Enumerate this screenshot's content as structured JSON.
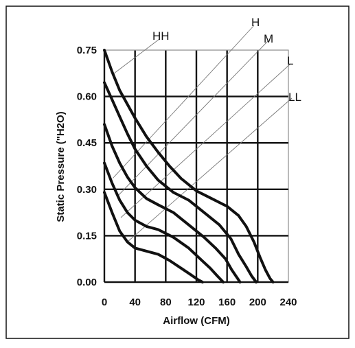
{
  "chart_data": {
    "type": "line",
    "title": "",
    "xlabel": "Airflow (CFM)",
    "ylabel": "Static Pressure (\"H2O)",
    "xlim": [
      0,
      240
    ],
    "ylim": [
      0,
      0.75
    ],
    "xticks": [
      0,
      40,
      80,
      120,
      160,
      200,
      240
    ],
    "xtick_labels": [
      "0",
      "40",
      "80",
      "120",
      "160",
      "200",
      "240"
    ],
    "yticks": [
      0,
      0.15,
      0.3,
      0.45,
      0.6,
      0.75
    ],
    "ytick_labels": [
      "0.00",
      "0.15",
      "0.30",
      "0.45",
      "0.60",
      "0.75"
    ],
    "grid": true,
    "legend": "none",
    "line_color": "#111111",
    "series": [
      {
        "name": "HH",
        "x": [
          0,
          10,
          20,
          30,
          40,
          55,
          70,
          85,
          100,
          120,
          140,
          160,
          175,
          185,
          195,
          203,
          210,
          216,
          220
        ],
        "y": [
          0.75,
          0.68,
          0.62,
          0.575,
          0.53,
          0.47,
          0.42,
          0.375,
          0.335,
          0.295,
          0.27,
          0.245,
          0.215,
          0.18,
          0.13,
          0.08,
          0.04,
          0.012,
          0.0
        ]
      },
      {
        "name": "H",
        "x": [
          0,
          10,
          20,
          30,
          40,
          55,
          70,
          90,
          110,
          130,
          150,
          165,
          175,
          185,
          192,
          198
        ],
        "y": [
          0.645,
          0.59,
          0.535,
          0.48,
          0.43,
          0.375,
          0.33,
          0.29,
          0.265,
          0.225,
          0.185,
          0.14,
          0.09,
          0.05,
          0.02,
          0.0
        ]
      },
      {
        "name": "M",
        "x": [
          0,
          10,
          20,
          30,
          40,
          55,
          70,
          90,
          110,
          130,
          145,
          158,
          166,
          172,
          177
        ],
        "y": [
          0.51,
          0.44,
          0.385,
          0.34,
          0.305,
          0.27,
          0.25,
          0.225,
          0.185,
          0.145,
          0.11,
          0.075,
          0.04,
          0.018,
          0.0
        ]
      },
      {
        "name": "L",
        "x": [
          0,
          10,
          20,
          30,
          40,
          55,
          70,
          90,
          110,
          125,
          138,
          148,
          155
        ],
        "y": [
          0.385,
          0.32,
          0.265,
          0.225,
          0.2,
          0.18,
          0.17,
          0.145,
          0.11,
          0.075,
          0.045,
          0.018,
          0.0
        ]
      },
      {
        "name": "LL",
        "x": [
          0,
          10,
          20,
          30,
          40,
          55,
          70,
          85,
          100,
          112,
          122,
          128
        ],
        "y": [
          0.29,
          0.225,
          0.165,
          0.13,
          0.11,
          0.1,
          0.09,
          0.07,
          0.045,
          0.025,
          0.008,
          0.0
        ]
      }
    ]
  }
}
